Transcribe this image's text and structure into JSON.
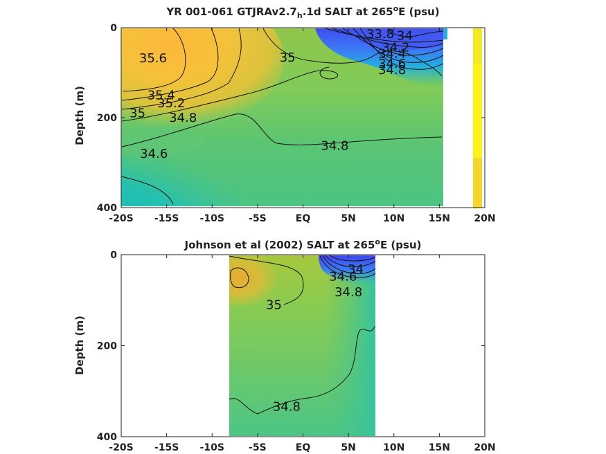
{
  "chart_data": [
    {
      "type": "heatmap",
      "title_parts": [
        "YR 001-061 GTJRAv2.7",
        "h",
        ".1d SALT at 265",
        "o",
        "E (psu)"
      ],
      "ylabel": "Depth (m)",
      "xlim": [
        -20,
        20
      ],
      "ylim": [
        0,
        400
      ],
      "y_reversed": true,
      "xtick_labels": [
        "-20S",
        "-15S",
        "-10S",
        "-5S",
        "EQ",
        "5N",
        "10N",
        "15N",
        "20N"
      ],
      "xtick_values": [
        -20,
        -15,
        -10,
        -5,
        0,
        5,
        10,
        15,
        20
      ],
      "ytick_labels": [
        "0",
        "200",
        "400"
      ],
      "ytick_values": [
        0,
        200,
        400
      ],
      "data_extent_lat": [
        -20,
        15.5
      ],
      "contour_labels": [
        {
          "text": "35.6",
          "lat": -16.5,
          "depth": 68
        },
        {
          "text": "35",
          "lat": -1.7,
          "depth": 66
        },
        {
          "text": "33.8",
          "lat": 8.5,
          "depth": 14
        },
        {
          "text": "34",
          "lat": 11.2,
          "depth": 18
        },
        {
          "text": "34.2",
          "lat": 10.2,
          "depth": 44
        },
        {
          "text": "34.4",
          "lat": 9.8,
          "depth": 58
        },
        {
          "text": "34.6",
          "lat": 9.8,
          "depth": 80
        },
        {
          "text": "34.8",
          "lat": 9.8,
          "depth": 94
        },
        {
          "text": "35.4",
          "lat": -15.6,
          "depth": 150
        },
        {
          "text": "35.2",
          "lat": -14.5,
          "depth": 168
        },
        {
          "text": "35",
          "lat": -18.2,
          "depth": 190
        },
        {
          "text": "34.8",
          "lat": -13.2,
          "depth": 200
        },
        {
          "text": "34.8",
          "lat": 3.5,
          "depth": 262
        },
        {
          "text": "34.6",
          "lat": -16.4,
          "depth": 280
        }
      ],
      "colorbar_segments": [
        {
          "color": "#f4ea23",
          "from": 0,
          "to": 80
        },
        {
          "color": "#fcf318",
          "from": 80,
          "to": 288
        },
        {
          "color": "#f6d52c",
          "from": 288,
          "to": 400
        }
      ]
    },
    {
      "type": "heatmap",
      "title_parts": [
        "Johnson et al (2002) SALT at 265",
        "o",
        "E (psu)"
      ],
      "ylabel": "Depth (m)",
      "xlim": [
        -20,
        20
      ],
      "ylim": [
        0,
        400
      ],
      "y_reversed": true,
      "xtick_labels": [
        "-20S",
        "-15S",
        "-10S",
        "-5S",
        "EQ",
        "5N",
        "10N",
        "15N",
        "20N"
      ],
      "xtick_values": [
        -20,
        -15,
        -10,
        -5,
        0,
        5,
        10,
        15,
        20
      ],
      "ytick_labels": [
        "0",
        "200",
        "400"
      ],
      "ytick_values": [
        0,
        200,
        400
      ],
      "data_extent_lat": [
        -8,
        8
      ],
      "contour_labels": [
        {
          "text": "34",
          "lat": 5.8,
          "depth": 32
        },
        {
          "text": "34.6",
          "lat": 4.4,
          "depth": 48
        },
        {
          "text": "34.8",
          "lat": 5.0,
          "depth": 82
        },
        {
          "text": "35",
          "lat": -3.2,
          "depth": 110
        },
        {
          "text": "34.8",
          "lat": -1.8,
          "depth": 334
        }
      ]
    }
  ]
}
